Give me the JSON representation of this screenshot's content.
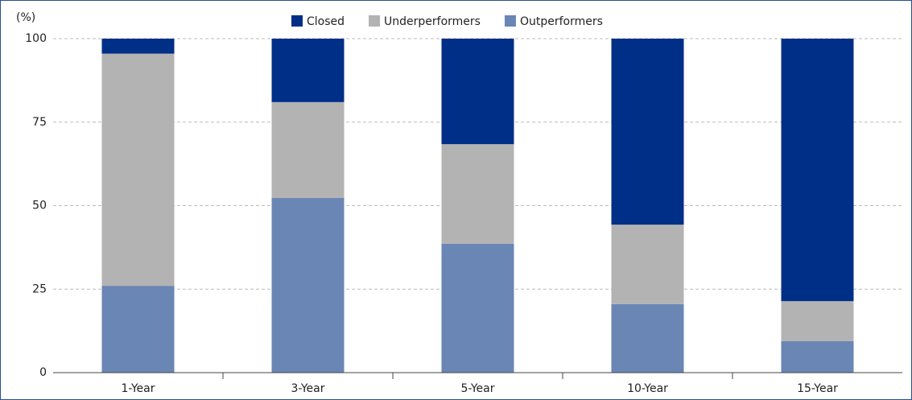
{
  "chart_data": {
    "type": "stacked_bar",
    "ylabel": "(%)",
    "categories": [
      "1-Year",
      "3-Year",
      "5-Year",
      "10-Year",
      "15-Year"
    ],
    "series": [
      {
        "name": "Outperformers",
        "color": "#6a86b5",
        "values": [
          26,
          52.3,
          38.6,
          20.5,
          9.4
        ]
      },
      {
        "name": "Underperformers",
        "color": "#b3b3b3",
        "values": [
          69.5,
          28.7,
          29.8,
          23.8,
          12
        ]
      },
      {
        "name": "Closed",
        "color": "#002f87",
        "values": [
          4.5,
          19,
          31.6,
          55.7,
          78.6
        ]
      }
    ],
    "ylim": [
      0,
      100
    ],
    "yticks": [
      0,
      25,
      50,
      75,
      100
    ],
    "grid": true
  }
}
